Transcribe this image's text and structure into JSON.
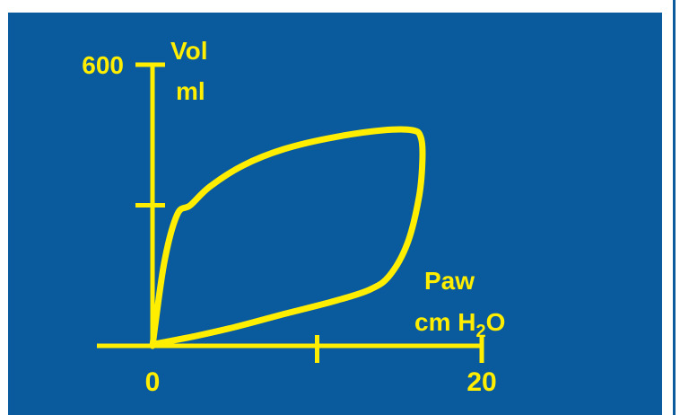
{
  "colors": {
    "background": "#0a5a9e",
    "foreground": "#ffee00",
    "page": "#ffffff"
  },
  "chart_data": {
    "type": "line",
    "title": "",
    "y_label_top": "Vol",
    "y_label_unit": "ml",
    "x_label_top": "Paw",
    "x_label_unit_prefix": "cm H",
    "x_label_unit_sub": "2",
    "x_label_unit_suffix": "O",
    "xlim": [
      0,
      20
    ],
    "ylim": [
      0,
      600
    ],
    "x_ticks": [
      0,
      10,
      20
    ],
    "x_tick_labels": [
      "0",
      "",
      "20"
    ],
    "y_ticks": [
      0,
      300,
      600
    ],
    "y_tick_labels": [
      "",
      "",
      "600"
    ],
    "series": [
      {
        "x": [
          0,
          0.7,
          1.5,
          2.3,
          3.5,
          5.5,
          8.0,
          11.0,
          14.0,
          15.8,
          16.3,
          16.4,
          16.2,
          15.5,
          14.4,
          13.2,
          11.0,
          8.0,
          5.0,
          2.5,
          0.3,
          0
        ],
        "y": [
          0,
          175,
          280,
          300,
          340,
          385,
          420,
          445,
          460,
          460,
          445,
          400,
          320,
          220,
          150,
          120,
          95,
          68,
          40,
          20,
          5,
          0
        ]
      }
    ]
  }
}
